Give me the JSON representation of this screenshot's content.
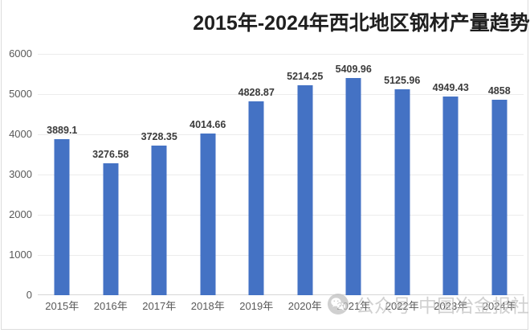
{
  "title": "2015年-2024年西北地区钢材产量趋势",
  "watermark": {
    "icon": "wechat-icon",
    "label_platform": "公众号",
    "label_account": "中国冶金报社"
  },
  "colors": {
    "background": "#FFFFFF",
    "bar": "#4472C4",
    "gridline": "#ECECEC",
    "baseline": "#D6D6D6",
    "axis_text": "#595959",
    "data_label": "#3B3B3B",
    "title_text": "#1F1F1F",
    "watermark": "#BFBFBF",
    "frame_border": "#DCDCDC"
  },
  "chart_data": {
    "type": "bar",
    "title": "2015年-2024年西北地区钢材产量趋势",
    "categories": [
      "2015年",
      "2016年",
      "2017年",
      "2018年",
      "2019年",
      "2020年",
      "2021年",
      "2022年",
      "2023年",
      "2024年"
    ],
    "values": [
      3889.1,
      3276.58,
      3728.35,
      4014.66,
      4828.87,
      5214.25,
      5409.96,
      5125.96,
      4949.43,
      4858
    ],
    "data_labels": [
      "3889.1",
      "3276.58",
      "3728.35",
      "4014.66",
      "4828.87",
      "5214.25",
      "5409.96",
      "5125.96",
      "4949.43",
      "4858"
    ],
    "xlabel": "",
    "ylabel": "",
    "ylim": [
      0,
      6000
    ],
    "yticks": [
      "0",
      "1000",
      "2000",
      "3000",
      "4000",
      "5000",
      "6000"
    ],
    "grid": true,
    "legend": false
  }
}
